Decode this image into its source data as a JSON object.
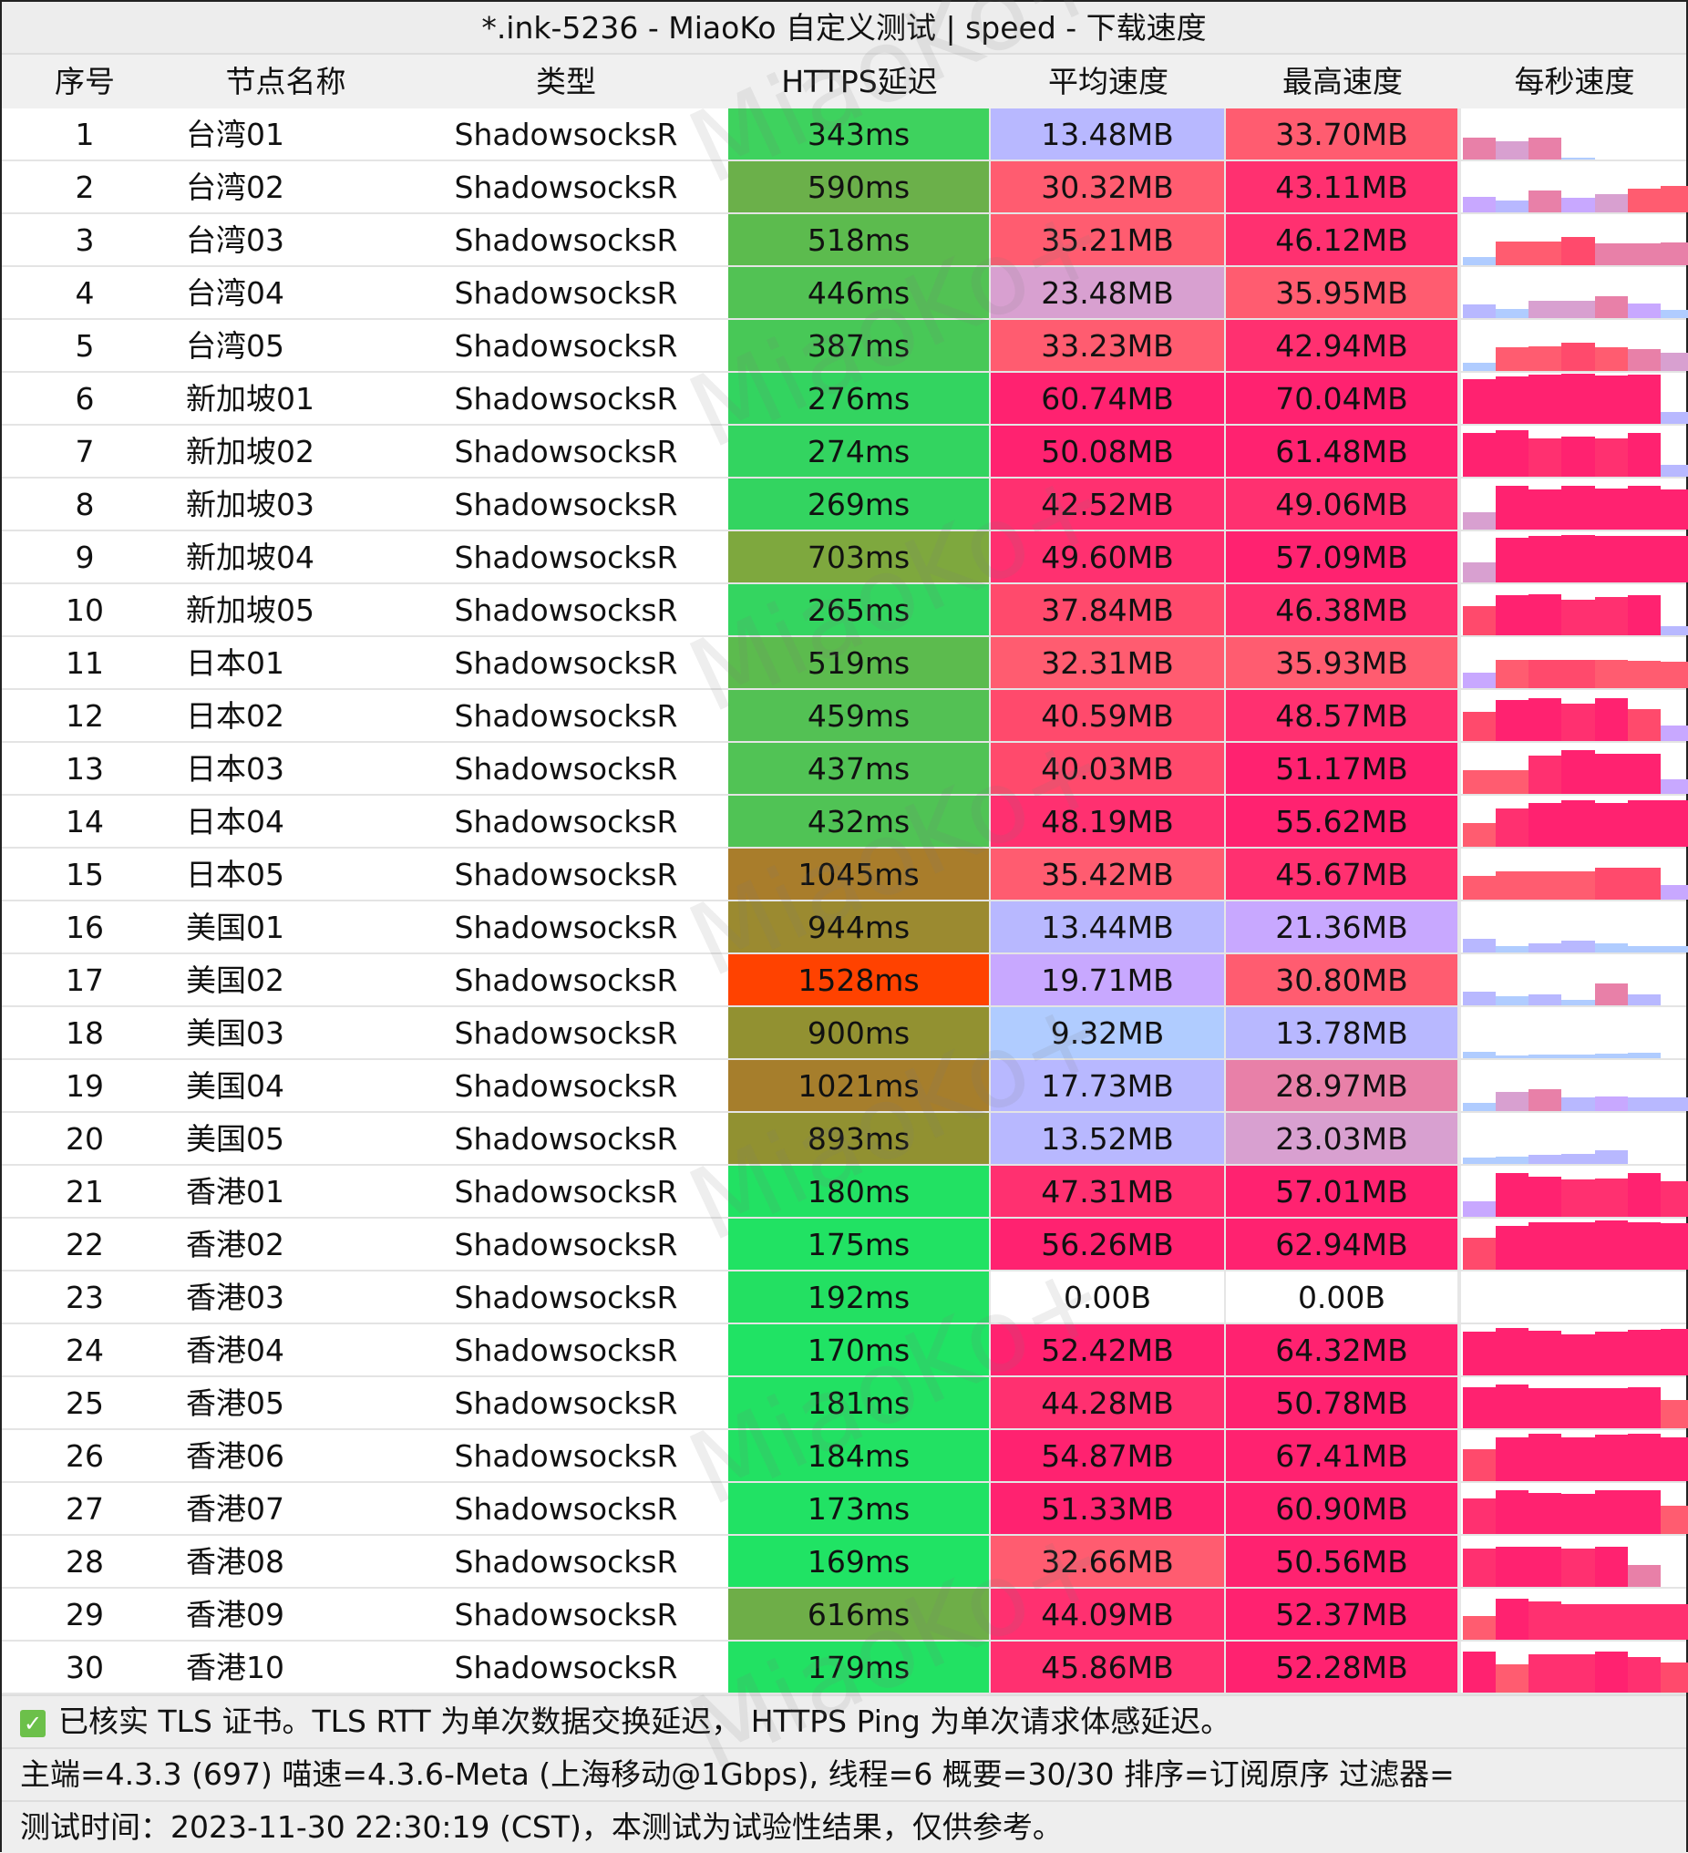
{
  "title": "*.ink-5236 - MiaoKo 自定义测试 | speed - 下载速度",
  "headers": [
    "序号",
    "节点名称",
    "类型",
    "HTTPS延迟",
    "平均速度",
    "最高速度",
    "每秒速度"
  ],
  "watermark": "MiaoKo+",
  "speed_color_scale": [
    [
      0,
      "#b0ccff"
    ],
    [
      12,
      "#b8b8ff"
    ],
    [
      18,
      "#c8a8ff"
    ],
    [
      22,
      "#d8a0d0"
    ],
    [
      26,
      "#e880a8"
    ],
    [
      30,
      "#ff5c70"
    ],
    [
      36,
      "#ff4a6c"
    ],
    [
      42,
      "#ff3070"
    ],
    [
      50,
      "#ff2270"
    ]
  ],
  "rows": [
    {
      "id": "1",
      "name": "台湾01",
      "type": "ShadowsocksR",
      "latency": "343ms",
      "lat_color": "#3ed25e",
      "avg": "13.48MB",
      "avg_v": 13.48,
      "max": "33.70MB",
      "max_v": 33.7,
      "per_sec": [
        28,
        23,
        27,
        0.5,
        0,
        0,
        0
      ]
    },
    {
      "id": "2",
      "name": "台湾02",
      "type": "ShadowsocksR",
      "latency": "590ms",
      "lat_color": "#6bb04a",
      "avg": "30.32MB",
      "avg_v": 30.32,
      "max": "43.11MB",
      "max_v": 43.11,
      "per_sec": [
        20,
        15,
        27,
        18,
        23,
        30,
        33
      ]
    },
    {
      "id": "3",
      "name": "台湾03",
      "type": "ShadowsocksR",
      "latency": "518ms",
      "lat_color": "#5cbb4e",
      "avg": "35.21MB",
      "avg_v": 35.21,
      "max": "46.12MB",
      "max_v": 46.12,
      "per_sec": [
        10,
        30,
        30,
        36,
        27,
        28,
        29
      ]
    },
    {
      "id": "4",
      "name": "台湾04",
      "type": "ShadowsocksR",
      "latency": "446ms",
      "lat_color": "#52c254",
      "avg": "23.48MB",
      "avg_v": 23.48,
      "max": "35.95MB",
      "max_v": 35.95,
      "per_sec": [
        17,
        11,
        22,
        22,
        28,
        18,
        10
      ]
    },
    {
      "id": "5",
      "name": "台湾05",
      "type": "ShadowsocksR",
      "latency": "387ms",
      "lat_color": "#48c857",
      "avg": "33.23MB",
      "avg_v": 33.23,
      "max": "42.94MB",
      "max_v": 42.94,
      "per_sec": [
        10,
        30,
        31,
        36,
        30,
        27,
        23
      ]
    },
    {
      "id": "6",
      "name": "新加坡01",
      "type": "ShadowsocksR",
      "latency": "276ms",
      "lat_color": "#33d460",
      "avg": "60.74MB",
      "avg_v": 60.74,
      "max": "70.04MB",
      "max_v": 70.04,
      "per_sec": [
        56,
        60,
        62,
        63,
        61,
        62,
        15
      ]
    },
    {
      "id": "7",
      "name": "新加坡02",
      "type": "ShadowsocksR",
      "latency": "274ms",
      "lat_color": "#33d460",
      "avg": "50.08MB",
      "avg_v": 50.08,
      "max": "61.48MB",
      "max_v": 61.48,
      "per_sec": [
        55,
        58,
        48,
        50,
        48,
        55,
        15
      ]
    },
    {
      "id": "8",
      "name": "新加坡03",
      "type": "ShadowsocksR",
      "latency": "269ms",
      "lat_color": "#33d460",
      "avg": "42.52MB",
      "avg_v": 42.52,
      "max": "49.06MB",
      "max_v": 49.06,
      "per_sec": [
        22,
        55,
        50,
        55,
        52,
        55,
        50
      ]
    },
    {
      "id": "9",
      "name": "新加坡04",
      "type": "ShadowsocksR",
      "latency": "703ms",
      "lat_color": "#7ea83e",
      "avg": "49.60MB",
      "avg_v": 49.6,
      "max": "57.09MB",
      "max_v": 57.09,
      "per_sec": [
        25,
        56,
        58,
        60,
        58,
        58,
        58
      ]
    },
    {
      "id": "10",
      "name": "新加坡05",
      "type": "ShadowsocksR",
      "latency": "265ms",
      "lat_color": "#34d560",
      "avg": "37.84MB",
      "avg_v": 37.84,
      "max": "46.38MB",
      "max_v": 46.38,
      "per_sec": [
        37,
        50,
        52,
        45,
        48,
        50,
        12
      ]
    },
    {
      "id": "11",
      "name": "日本01",
      "type": "ShadowsocksR",
      "latency": "519ms",
      "lat_color": "#5cbb4e",
      "avg": "32.31MB",
      "avg_v": 32.31,
      "max": "35.93MB",
      "max_v": 35.93,
      "per_sec": [
        20,
        35,
        36,
        36,
        35,
        34,
        33
      ]
    },
    {
      "id": "12",
      "name": "日本02",
      "type": "ShadowsocksR",
      "latency": "459ms",
      "lat_color": "#53c154",
      "avg": "40.59MB",
      "avg_v": 40.59,
      "max": "48.57MB",
      "max_v": 48.57,
      "per_sec": [
        37,
        52,
        54,
        47,
        54,
        40,
        20
      ]
    },
    {
      "id": "13",
      "name": "日本03",
      "type": "ShadowsocksR",
      "latency": "437ms",
      "lat_color": "#51c355",
      "avg": "40.03MB",
      "avg_v": 40.03,
      "max": "51.17MB",
      "max_v": 51.17,
      "per_sec": [
        30,
        30,
        48,
        55,
        50,
        50,
        18
      ]
    },
    {
      "id": "14",
      "name": "日本04",
      "type": "ShadowsocksR",
      "latency": "432ms",
      "lat_color": "#50c355",
      "avg": "48.19MB",
      "avg_v": 48.19,
      "max": "55.62MB",
      "max_v": 55.62,
      "per_sec": [
        30,
        48,
        55,
        58,
        55,
        58,
        58
      ]
    },
    {
      "id": "15",
      "name": "日本05",
      "type": "ShadowsocksR",
      "latency": "1045ms",
      "lat_color": "#a97d2b",
      "avg": "35.42MB",
      "avg_v": 35.42,
      "max": "45.67MB",
      "max_v": 45.67,
      "per_sec": [
        30,
        35,
        35,
        35,
        40,
        40,
        18
      ]
    },
    {
      "id": "16",
      "name": "美国01",
      "type": "ShadowsocksR",
      "latency": "944ms",
      "lat_color": "#9b8a30",
      "avg": "13.44MB",
      "avg_v": 13.44,
      "max": "21.36MB",
      "max_v": 21.36,
      "per_sec": [
        17,
        8,
        12,
        15,
        11,
        8,
        8
      ]
    },
    {
      "id": "17",
      "name": "美国02",
      "type": "ShadowsocksR",
      "latency": "1528ms",
      "lat_color": "#ff4200",
      "avg": "19.71MB",
      "avg_v": 19.71,
      "max": "30.80MB",
      "max_v": 30.8,
      "per_sec": [
        17,
        11,
        14,
        7,
        28,
        14,
        0
      ]
    },
    {
      "id": "18",
      "name": "美国03",
      "type": "ShadowsocksR",
      "latency": "900ms",
      "lat_color": "#929131",
      "avg": "9.32MB",
      "avg_v": 9.32,
      "max": "13.78MB",
      "max_v": 13.78,
      "per_sec": [
        8,
        4,
        5,
        5,
        6,
        7,
        0
      ]
    },
    {
      "id": "19",
      "name": "美国04",
      "type": "ShadowsocksR",
      "latency": "1021ms",
      "lat_color": "#a67e2c",
      "avg": "17.73MB",
      "avg_v": 17.73,
      "max": "28.97MB",
      "max_v": 28.97,
      "per_sec": [
        10,
        24,
        27,
        17,
        18,
        17,
        17
      ]
    },
    {
      "id": "20",
      "name": "美国05",
      "type": "ShadowsocksR",
      "latency": "893ms",
      "lat_color": "#919131",
      "avg": "13.52MB",
      "avg_v": 13.52,
      "max": "23.03MB",
      "max_v": 23.03,
      "per_sec": [
        8,
        9,
        12,
        13,
        17,
        0,
        0
      ]
    },
    {
      "id": "21",
      "name": "香港01",
      "type": "ShadowsocksR",
      "latency": "180ms",
      "lat_color": "#22e163",
      "avg": "47.31MB",
      "avg_v": 47.31,
      "max": "57.01MB",
      "max_v": 57.01,
      "per_sec": [
        20,
        55,
        50,
        47,
        48,
        55,
        45
      ]
    },
    {
      "id": "22",
      "name": "香港02",
      "type": "ShadowsocksR",
      "latency": "175ms",
      "lat_color": "#21e263",
      "avg": "56.26MB",
      "avg_v": 56.26,
      "max": "62.94MB",
      "max_v": 62.94,
      "per_sec": [
        40,
        55,
        60,
        60,
        62,
        60,
        58
      ]
    },
    {
      "id": "23",
      "name": "香港03",
      "type": "ShadowsocksR",
      "latency": "192ms",
      "lat_color": "#23e062",
      "avg": "0.00B",
      "avg_v": 0,
      "max": "0.00B",
      "max_v": 0,
      "per_sec": [
        0,
        0,
        0,
        0,
        0,
        0,
        0
      ]
    },
    {
      "id": "24",
      "name": "香港04",
      "type": "ShadowsocksR",
      "latency": "170ms",
      "lat_color": "#20e364",
      "avg": "52.42MB",
      "avg_v": 52.42,
      "max": "64.32MB",
      "max_v": 64.32,
      "per_sec": [
        55,
        60,
        56,
        52,
        55,
        57,
        58
      ]
    },
    {
      "id": "25",
      "name": "香港05",
      "type": "ShadowsocksR",
      "latency": "181ms",
      "lat_color": "#22e163",
      "avg": "44.28MB",
      "avg_v": 44.28,
      "max": "50.78MB",
      "max_v": 50.78,
      "per_sec": [
        52,
        55,
        50,
        50,
        50,
        52,
        35
      ]
    },
    {
      "id": "26",
      "name": "香港06",
      "type": "ShadowsocksR",
      "latency": "184ms",
      "lat_color": "#22e163",
      "avg": "54.87MB",
      "avg_v": 54.87,
      "max": "67.41MB",
      "max_v": 67.41,
      "per_sec": [
        40,
        55,
        60,
        55,
        58,
        60,
        55
      ]
    },
    {
      "id": "27",
      "name": "香港07",
      "type": "ShadowsocksR",
      "latency": "173ms",
      "lat_color": "#21e264",
      "avg": "51.33MB",
      "avg_v": 51.33,
      "max": "60.90MB",
      "max_v": 60.9,
      "per_sec": [
        45,
        55,
        52,
        50,
        55,
        55,
        35
      ]
    },
    {
      "id": "28",
      "name": "香港08",
      "type": "ShadowsocksR",
      "latency": "169ms",
      "lat_color": "#20e364",
      "avg": "32.66MB",
      "avg_v": 32.66,
      "max": "50.56MB",
      "max_v": 50.56,
      "per_sec": [
        48,
        50,
        50,
        48,
        50,
        28,
        0
      ]
    },
    {
      "id": "29",
      "name": "香港09",
      "type": "ShadowsocksR",
      "latency": "616ms",
      "lat_color": "#6eae48",
      "avg": "44.09MB",
      "avg_v": 44.09,
      "max": "52.37MB",
      "max_v": 52.37,
      "per_sec": [
        30,
        52,
        48,
        45,
        45,
        45,
        45
      ]
    },
    {
      "id": "30",
      "name": "香港10",
      "type": "ShadowsocksR",
      "latency": "179ms",
      "lat_color": "#22e163",
      "avg": "45.86MB",
      "avg_v": 45.86,
      "max": "52.28MB",
      "max_v": 52.28,
      "per_sec": [
        52,
        35,
        48,
        48,
        52,
        45,
        38
      ]
    }
  ],
  "footer": {
    "tls_note": "已核实 TLS 证书。TLS RTT 为单次数据交换延迟， HTTPS Ping 为单次请求体感延迟。",
    "tls_checked": true,
    "info": "主端=4.3.3 (697) 喵速=4.3.6-Meta (上海移动@1Gbps), 线程=6 概要=30/30 排序=订阅原序 过滤器=",
    "time": "测试时间：2023-11-30 22:30:19 (CST)，本测试为试验性结果，仅供参考。"
  }
}
